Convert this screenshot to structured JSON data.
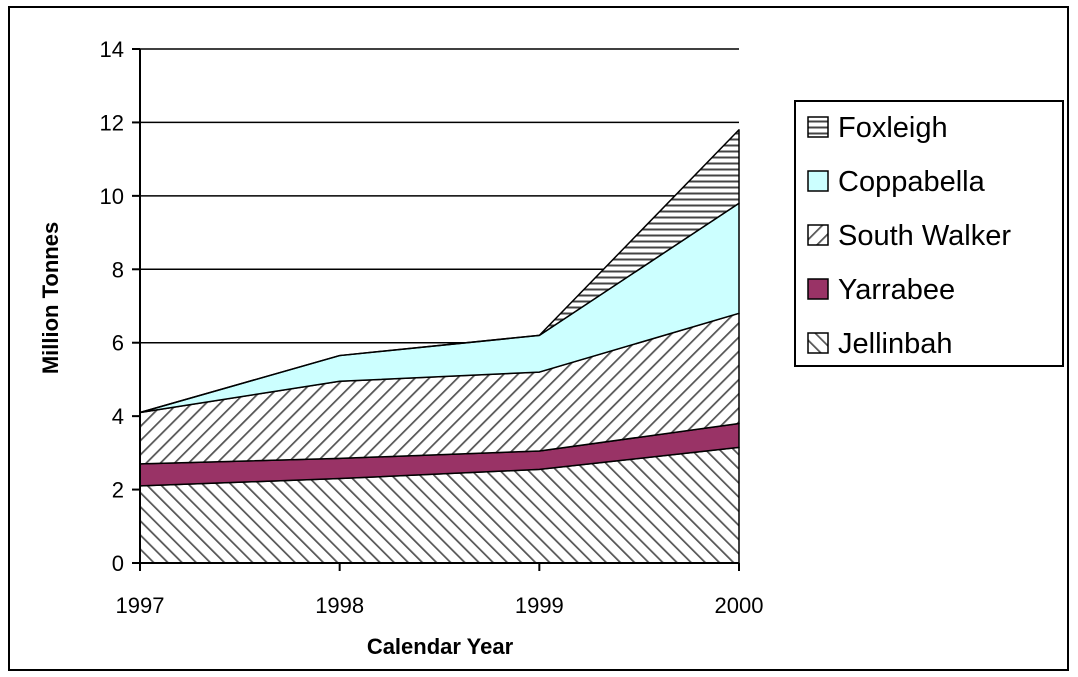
{
  "chart_data": {
    "type": "area",
    "stacked": true,
    "x": [
      "1997",
      "1998",
      "1999",
      "2000"
    ],
    "xlabel": "Calendar Year",
    "ylabel": "Million Tonnes",
    "ylim": [
      0,
      14
    ],
    "yticks": [
      "0",
      "2",
      "4",
      "6",
      "8",
      "10",
      "12",
      "14"
    ],
    "grid": true,
    "legend": "right",
    "series": [
      {
        "name": "Jellinbah",
        "values": [
          2.1,
          2.3,
          2.55,
          3.15
        ],
        "color": "#ffffff",
        "pattern": "diag-forward"
      },
      {
        "name": "Yarrabee",
        "values": [
          0.6,
          0.55,
          0.5,
          0.65
        ],
        "color": "#993366",
        "pattern": "solid"
      },
      {
        "name": "South Walker",
        "values": [
          1.4,
          2.1,
          2.15,
          3.0
        ],
        "color": "#ffffff",
        "pattern": "diag-back"
      },
      {
        "name": "Coppabella",
        "values": [
          0.0,
          0.7,
          1.0,
          3.0
        ],
        "color": "#ccffff",
        "pattern": "solid"
      },
      {
        "name": "Foxleigh",
        "values": [
          0.0,
          0.0,
          0.0,
          2.0
        ],
        "color": "#ffffff",
        "pattern": "horizontal"
      }
    ]
  }
}
